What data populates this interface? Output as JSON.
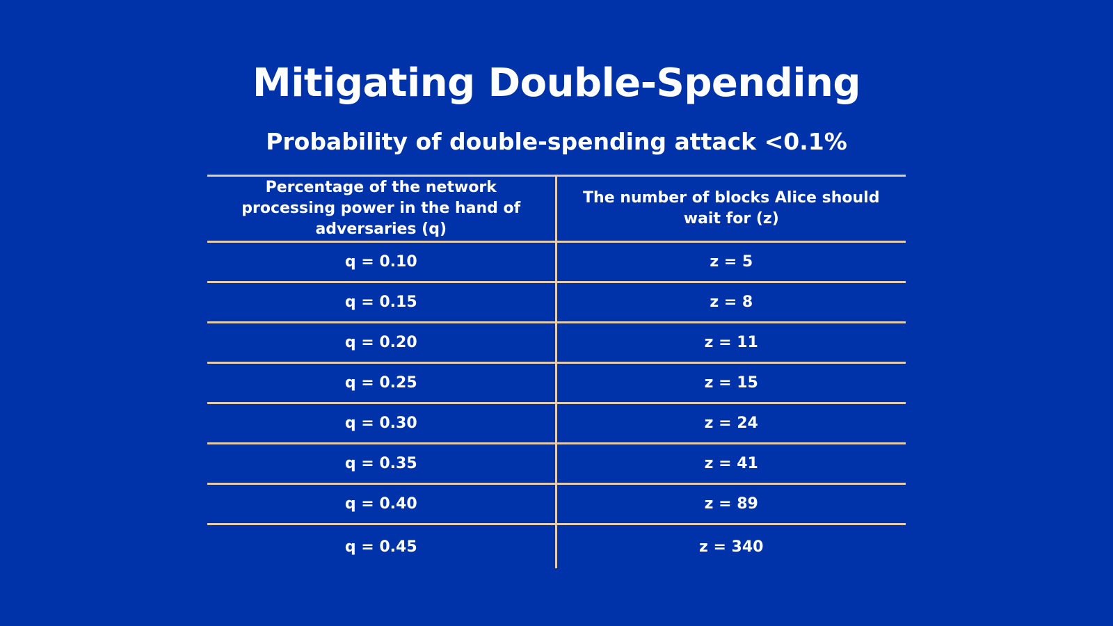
{
  "slide": {
    "title": "Mitigating Double-Spending",
    "subtitle": "Probability of double-spending attack <0.1%"
  },
  "table": {
    "headers": [
      "Percentage of the network processing power in the hand of adversaries (q)",
      "The number of blocks Alice should wait for (z)"
    ],
    "rows": [
      [
        "q = 0.10",
        "z = 5"
      ],
      [
        "q = 0.15",
        "z = 8"
      ],
      [
        "q = 0.20",
        "z = 11"
      ],
      [
        "q = 0.25",
        "z = 15"
      ],
      [
        "q = 0.30",
        "z = 24"
      ],
      [
        "q = 0.35",
        "z = 41"
      ],
      [
        "q = 0.40",
        "z = 89"
      ],
      [
        "q = 0.45",
        "z = 340"
      ]
    ]
  },
  "colors": {
    "background": "#0033aa",
    "text": "#ffffff",
    "rule_lines": "#e3ccb0"
  }
}
